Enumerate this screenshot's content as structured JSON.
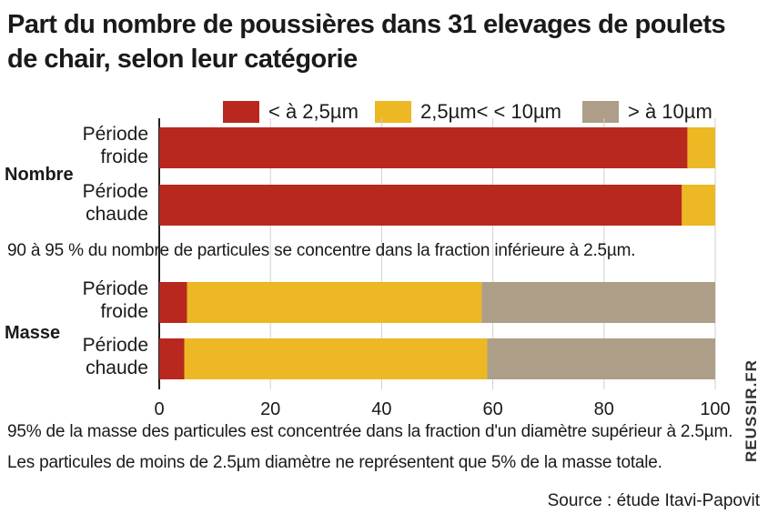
{
  "title": "Part du nombre de poussières dans 31 elevages de poulets de chair, selon leur catégorie",
  "legend": [
    {
      "label": "< à 2,5µm",
      "color": "#b8281e"
    },
    {
      "label": "2,5µm< < 10µm",
      "color": "#ecb823"
    },
    {
      "label": "> à 10µm",
      "color": "#ad9e88"
    }
  ],
  "chart_data": [
    {
      "type": "bar",
      "orientation": "horizontal",
      "stacked": true,
      "group_label": "Nombre",
      "categories": [
        "Période froide",
        "Période chaude"
      ],
      "category_lines": [
        [
          "Période",
          "froide"
        ],
        [
          "Période",
          "chaude"
        ]
      ],
      "series": [
        {
          "name": "< à 2,5µm",
          "values": [
            95,
            94
          ]
        },
        {
          "name": "2,5µm< < 10µm",
          "values": [
            5,
            6
          ]
        },
        {
          "name": "> à 10µm",
          "values": [
            0,
            0
          ]
        }
      ],
      "xlim": [
        0,
        100
      ]
    },
    {
      "type": "bar",
      "orientation": "horizontal",
      "stacked": true,
      "group_label": "Masse",
      "categories": [
        "Période froide",
        "Période chaude"
      ],
      "category_lines": [
        [
          "Période",
          "froide"
        ],
        [
          "Période",
          "chaude"
        ]
      ],
      "series": [
        {
          "name": "< à 2,5µm",
          "values": [
            5,
            4.5
          ]
        },
        {
          "name": "2,5µm< < 10µm",
          "values": [
            53,
            54.5
          ]
        },
        {
          "name": "> à 10µm",
          "values": [
            42,
            41
          ]
        }
      ],
      "xlim": [
        0,
        100
      ]
    }
  ],
  "axis": {
    "ticks": [
      "0",
      "20",
      "40",
      "60",
      "80",
      "100"
    ],
    "tick_values": [
      0,
      20,
      40,
      60,
      80,
      100
    ]
  },
  "notes": {
    "nombre": "90 à 95 % du nombre de particules se concentre dans la fraction inférieure à 2.5µm.",
    "masse_1": "95% de la masse des particules est concentrée dans la fraction d'un diamètre supérieur à 2.5µm.",
    "masse_2": "Les particules de moins de 2.5µm diamètre ne représentent que 5% de la masse totale."
  },
  "source": "Source : étude Itavi-Papovit",
  "brand": "REUSSIR.FR"
}
